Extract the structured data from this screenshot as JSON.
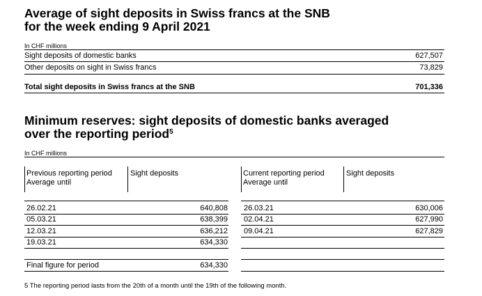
{
  "section1": {
    "title_line1": "Average of sight deposits in Swiss francs at the SNB",
    "title_line2": "for the week ending 9 April 2021",
    "unit": "In CHF millions",
    "rows": [
      {
        "label": "Sight deposits of domestic banks",
        "value": "627,507"
      },
      {
        "label": "Other deposits on sight in Swiss francs",
        "value": "73,829"
      }
    ],
    "total": {
      "label": "Total sight deposits in Swiss francs at the SNB",
      "value": "701,336"
    }
  },
  "section2": {
    "title_line1": "Minimum reserves: sight deposits of domestic banks averaged",
    "title_line2": "over the reporting period",
    "footnote_ref": "5",
    "unit": "In CHF millions",
    "headers": {
      "prev_period_line1": "Previous reporting period",
      "prev_period_line2": "Average until",
      "prev_sight": "Sight deposits",
      "curr_period_line1": "Current reporting period",
      "curr_period_line2": "Average until",
      "curr_sight": "Sight deposits"
    },
    "rows": [
      {
        "prev_date": "26.02.21",
        "prev_value": "640,808",
        "curr_date": "26.03.21",
        "curr_value": "630,006"
      },
      {
        "prev_date": "05.03.21",
        "prev_value": "638,399",
        "curr_date": "02.04.21",
        "curr_value": "627,990"
      },
      {
        "prev_date": "12.03.21",
        "prev_value": "636,212",
        "curr_date": "09.04.21",
        "curr_value": "627,829"
      },
      {
        "prev_date": "19.03.21",
        "prev_value": "634,330",
        "curr_date": "",
        "curr_value": ""
      }
    ],
    "final": {
      "label": "Final figure for period",
      "prev_value": "634,330",
      "curr_value": ""
    },
    "footnote": "5  The reporting period lasts from the 20th of a month until the 19th of the following month."
  }
}
